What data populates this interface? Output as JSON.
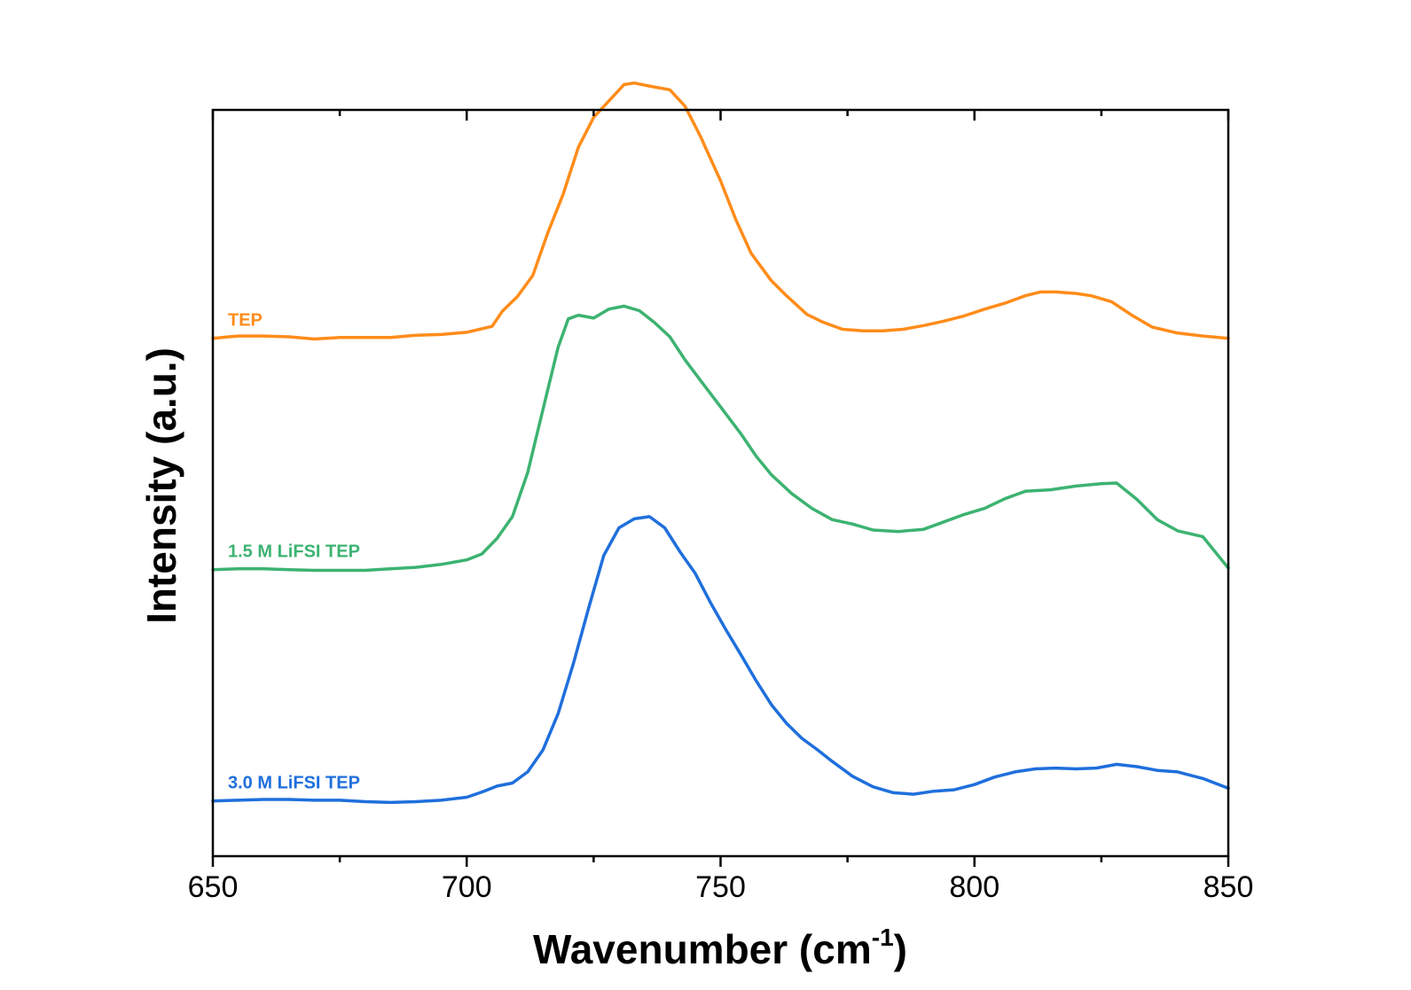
{
  "chart_data": {
    "type": "line",
    "xlabel": "Wavenumber (cm",
    "xlabel_superscript": "-1",
    "xlabel_suffix": ")",
    "ylabel": "Intensity (a.u.)",
    "xlim": [
      650,
      850
    ],
    "ylim": [
      0,
      1
    ],
    "x_ticks": [
      650,
      700,
      750,
      800,
      850
    ],
    "x_tick_labels": [
      "650",
      "700",
      "750",
      "800",
      "850"
    ],
    "y_ticks_shown": false,
    "grid": false,
    "legend": "none (inline labels at left of each trace)",
    "series": [
      {
        "name": "TEP",
        "color": "#ff8c1a",
        "points": [
          [
            650,
            0.694
          ],
          [
            655,
            0.697
          ],
          [
            660,
            0.697
          ],
          [
            665,
            0.696
          ],
          [
            670,
            0.693
          ],
          [
            675,
            0.695
          ],
          [
            680,
            0.695
          ],
          [
            685,
            0.695
          ],
          [
            690,
            0.698
          ],
          [
            695,
            0.699
          ],
          [
            700,
            0.702
          ],
          [
            705,
            0.71
          ],
          [
            707,
            0.73
          ],
          [
            710,
            0.75
          ],
          [
            713,
            0.778
          ],
          [
            716,
            0.836
          ],
          [
            719,
            0.887
          ],
          [
            722,
            0.95
          ],
          [
            725,
            0.99
          ],
          [
            728,
            1.012
          ],
          [
            731,
            1.034
          ],
          [
            733,
            1.036
          ],
          [
            736,
            1.032
          ],
          [
            740,
            1.027
          ],
          [
            743,
            1.005
          ],
          [
            746,
            0.965
          ],
          [
            750,
            0.905
          ],
          [
            753,
            0.853
          ],
          [
            756,
            0.808
          ],
          [
            760,
            0.771
          ],
          [
            763,
            0.751
          ],
          [
            767,
            0.726
          ],
          [
            770,
            0.716
          ],
          [
            774,
            0.706
          ],
          [
            778,
            0.704
          ],
          [
            782,
            0.704
          ],
          [
            786,
            0.706
          ],
          [
            790,
            0.711
          ],
          [
            794,
            0.717
          ],
          [
            798,
            0.724
          ],
          [
            802,
            0.733
          ],
          [
            806,
            0.741
          ],
          [
            810,
            0.751
          ],
          [
            813,
            0.756
          ],
          [
            816,
            0.756
          ],
          [
            820,
            0.754
          ],
          [
            823,
            0.751
          ],
          [
            827,
            0.743
          ],
          [
            831,
            0.725
          ],
          [
            835,
            0.709
          ],
          [
            840,
            0.701
          ],
          [
            845,
            0.697
          ],
          [
            850,
            0.694
          ]
        ]
      },
      {
        "name": "1.5 M LiFSI TEP",
        "color": "#3cb371",
        "points": [
          [
            650,
            0.384
          ],
          [
            655,
            0.385
          ],
          [
            660,
            0.385
          ],
          [
            665,
            0.384
          ],
          [
            670,
            0.383
          ],
          [
            675,
            0.383
          ],
          [
            680,
            0.383
          ],
          [
            685,
            0.385
          ],
          [
            690,
            0.387
          ],
          [
            695,
            0.391
          ],
          [
            700,
            0.397
          ],
          [
            703,
            0.405
          ],
          [
            706,
            0.426
          ],
          [
            709,
            0.455
          ],
          [
            712,
            0.514
          ],
          [
            715,
            0.598
          ],
          [
            718,
            0.682
          ],
          [
            720,
            0.72
          ],
          [
            722,
            0.725
          ],
          [
            725,
            0.721
          ],
          [
            728,
            0.733
          ],
          [
            731,
            0.737
          ],
          [
            734,
            0.731
          ],
          [
            737,
            0.715
          ],
          [
            740,
            0.696
          ],
          [
            743,
            0.665
          ],
          [
            747,
            0.629
          ],
          [
            750,
            0.602
          ],
          [
            754,
            0.566
          ],
          [
            757,
            0.536
          ],
          [
            760,
            0.511
          ],
          [
            764,
            0.486
          ],
          [
            768,
            0.466
          ],
          [
            772,
            0.451
          ],
          [
            776,
            0.445
          ],
          [
            780,
            0.437
          ],
          [
            785,
            0.435
          ],
          [
            790,
            0.438
          ],
          [
            794,
            0.448
          ],
          [
            798,
            0.458
          ],
          [
            802,
            0.466
          ],
          [
            806,
            0.479
          ],
          [
            810,
            0.489
          ],
          [
            815,
            0.491
          ],
          [
            820,
            0.496
          ],
          [
            825,
            0.499
          ],
          [
            828,
            0.5
          ],
          [
            832,
            0.478
          ],
          [
            836,
            0.451
          ],
          [
            840,
            0.436
          ],
          [
            845,
            0.428
          ],
          [
            850,
            0.386
          ]
        ]
      },
      {
        "name": "3.0 M LiFSI TEP",
        "color": "#1f6fdc",
        "points": [
          [
            650,
            0.074
          ],
          [
            655,
            0.075
          ],
          [
            660,
            0.076
          ],
          [
            665,
            0.076
          ],
          [
            670,
            0.075
          ],
          [
            675,
            0.075
          ],
          [
            680,
            0.073
          ],
          [
            685,
            0.072
          ],
          [
            690,
            0.073
          ],
          [
            695,
            0.075
          ],
          [
            700,
            0.079
          ],
          [
            703,
            0.086
          ],
          [
            706,
            0.094
          ],
          [
            709,
            0.098
          ],
          [
            712,
            0.113
          ],
          [
            715,
            0.142
          ],
          [
            718,
            0.191
          ],
          [
            721,
            0.258
          ],
          [
            724,
            0.332
          ],
          [
            727,
            0.403
          ],
          [
            730,
            0.44
          ],
          [
            733,
            0.452
          ],
          [
            736,
            0.455
          ],
          [
            739,
            0.44
          ],
          [
            742,
            0.408
          ],
          [
            745,
            0.379
          ],
          [
            748,
            0.34
          ],
          [
            751,
            0.304
          ],
          [
            754,
            0.27
          ],
          [
            757,
            0.235
          ],
          [
            760,
            0.203
          ],
          [
            763,
            0.178
          ],
          [
            766,
            0.158
          ],
          [
            769,
            0.143
          ],
          [
            772,
            0.127
          ],
          [
            776,
            0.107
          ],
          [
            780,
            0.093
          ],
          [
            784,
            0.085
          ],
          [
            788,
            0.083
          ],
          [
            792,
            0.087
          ],
          [
            796,
            0.089
          ],
          [
            800,
            0.096
          ],
          [
            804,
            0.106
          ],
          [
            808,
            0.113
          ],
          [
            812,
            0.117
          ],
          [
            816,
            0.118
          ],
          [
            820,
            0.117
          ],
          [
            824,
            0.118
          ],
          [
            828,
            0.123
          ],
          [
            832,
            0.12
          ],
          [
            836,
            0.115
          ],
          [
            840,
            0.113
          ],
          [
            845,
            0.104
          ],
          [
            850,
            0.091
          ]
        ]
      }
    ]
  }
}
